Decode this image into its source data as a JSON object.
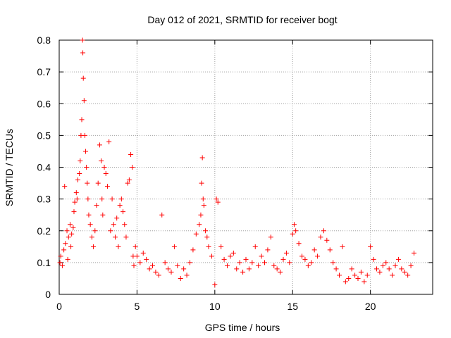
{
  "chart_data": {
    "type": "scatter",
    "title": "Day 012 of 2021, SRMTID for receiver bogt",
    "xlabel": "GPS time / hours",
    "ylabel": "SRMTID / TECUs",
    "xlim": [
      0,
      24
    ],
    "ylim": [
      0,
      0.8
    ],
    "xticks": [
      0,
      5,
      10,
      15,
      20
    ],
    "xtick_labels": [
      "0",
      "5",
      "10",
      "15",
      "20"
    ],
    "yticks": [
      0,
      0.1,
      0.2,
      0.3,
      0.4,
      0.5,
      0.6,
      0.7,
      0.8
    ],
    "ytick_labels": [
      "0",
      "0.1",
      "0.2",
      "0.3",
      "0.4",
      "0.5",
      "0.6",
      "0.7",
      "0.8"
    ],
    "grid": true,
    "marker": "+",
    "series": [
      {
        "name": "SRMTID",
        "color": "#ff0000",
        "x": [
          0.05,
          0.1,
          0.2,
          0.3,
          0.35,
          0.4,
          0.5,
          0.55,
          0.6,
          0.7,
          0.75,
          0.8,
          0.9,
          0.95,
          1.0,
          1.1,
          1.15,
          1.2,
          1.3,
          1.35,
          1.4,
          1.45,
          1.5,
          1.52,
          1.55,
          1.6,
          1.65,
          1.7,
          1.75,
          1.8,
          1.85,
          1.9,
          2.0,
          2.1,
          2.2,
          2.3,
          2.4,
          2.5,
          2.6,
          2.7,
          2.75,
          2.8,
          2.9,
          3.0,
          3.1,
          3.2,
          3.3,
          3.4,
          3.5,
          3.6,
          3.7,
          3.8,
          3.9,
          4.0,
          4.1,
          4.2,
          4.3,
          4.4,
          4.5,
          4.6,
          4.7,
          4.75,
          4.8,
          4.9,
          5.0,
          5.2,
          5.4,
          5.6,
          5.8,
          6.0,
          6.2,
          6.4,
          6.6,
          6.8,
          7.0,
          7.2,
          7.4,
          7.6,
          7.8,
          8.0,
          8.2,
          8.4,
          8.6,
          8.8,
          9.0,
          9.1,
          9.15,
          9.2,
          9.25,
          9.3,
          9.4,
          9.5,
          9.6,
          9.8,
          10.0,
          10.1,
          10.2,
          10.4,
          10.6,
          10.8,
          11.0,
          11.2,
          11.4,
          11.6,
          11.8,
          12.0,
          12.2,
          12.4,
          12.6,
          12.8,
          13.0,
          13.2,
          13.4,
          13.6,
          13.8,
          14.0,
          14.2,
          14.4,
          14.6,
          14.8,
          15.0,
          15.1,
          15.2,
          15.4,
          15.6,
          15.8,
          16.0,
          16.2,
          16.4,
          16.6,
          16.8,
          17.0,
          17.2,
          17.4,
          17.6,
          17.8,
          18.0,
          18.2,
          18.4,
          18.6,
          18.8,
          19.0,
          19.2,
          19.4,
          19.6,
          19.8,
          20.0,
          20.2,
          20.4,
          20.6,
          20.8,
          21.0,
          21.2,
          21.4,
          21.6,
          21.8,
          22.0,
          22.2,
          22.4,
          22.6,
          22.8
        ],
        "y": [
          0.1,
          0.12,
          0.09,
          0.14,
          0.34,
          0.16,
          0.2,
          0.11,
          0.18,
          0.22,
          0.15,
          0.19,
          0.21,
          0.26,
          0.29,
          0.32,
          0.3,
          0.36,
          0.38,
          0.42,
          0.5,
          0.55,
          0.8,
          0.76,
          0.68,
          0.61,
          0.5,
          0.45,
          0.4,
          0.35,
          0.3,
          0.25,
          0.22,
          0.18,
          0.15,
          0.2,
          0.28,
          0.35,
          0.47,
          0.42,
          0.3,
          0.25,
          0.4,
          0.38,
          0.34,
          0.48,
          0.2,
          0.3,
          0.22,
          0.18,
          0.24,
          0.15,
          0.28,
          0.3,
          0.26,
          0.22,
          0.18,
          0.35,
          0.36,
          0.44,
          0.4,
          0.12,
          0.09,
          0.15,
          0.12,
          0.1,
          0.13,
          0.11,
          0.08,
          0.09,
          0.07,
          0.06,
          0.25,
          0.1,
          0.08,
          0.07,
          0.15,
          0.09,
          0.05,
          0.08,
          0.06,
          0.1,
          0.14,
          0.19,
          0.22,
          0.25,
          0.35,
          0.43,
          0.3,
          0.28,
          0.2,
          0.18,
          0.15,
          0.12,
          0.03,
          0.3,
          0.29,
          0.15,
          0.11,
          0.09,
          0.12,
          0.13,
          0.08,
          0.1,
          0.07,
          0.11,
          0.08,
          0.1,
          0.15,
          0.09,
          0.12,
          0.1,
          0.14,
          0.18,
          0.09,
          0.08,
          0.07,
          0.11,
          0.13,
          0.1,
          0.19,
          0.22,
          0.2,
          0.16,
          0.12,
          0.11,
          0.09,
          0.1,
          0.14,
          0.12,
          0.18,
          0.2,
          0.17,
          0.14,
          0.1,
          0.08,
          0.06,
          0.15,
          0.04,
          0.05,
          0.08,
          0.06,
          0.05,
          0.07,
          0.04,
          0.06,
          0.15,
          0.11,
          0.08,
          0.07,
          0.09,
          0.1,
          0.08,
          0.06,
          0.09,
          0.11,
          0.08,
          0.07,
          0.06,
          0.09,
          0.13
        ]
      }
    ]
  }
}
